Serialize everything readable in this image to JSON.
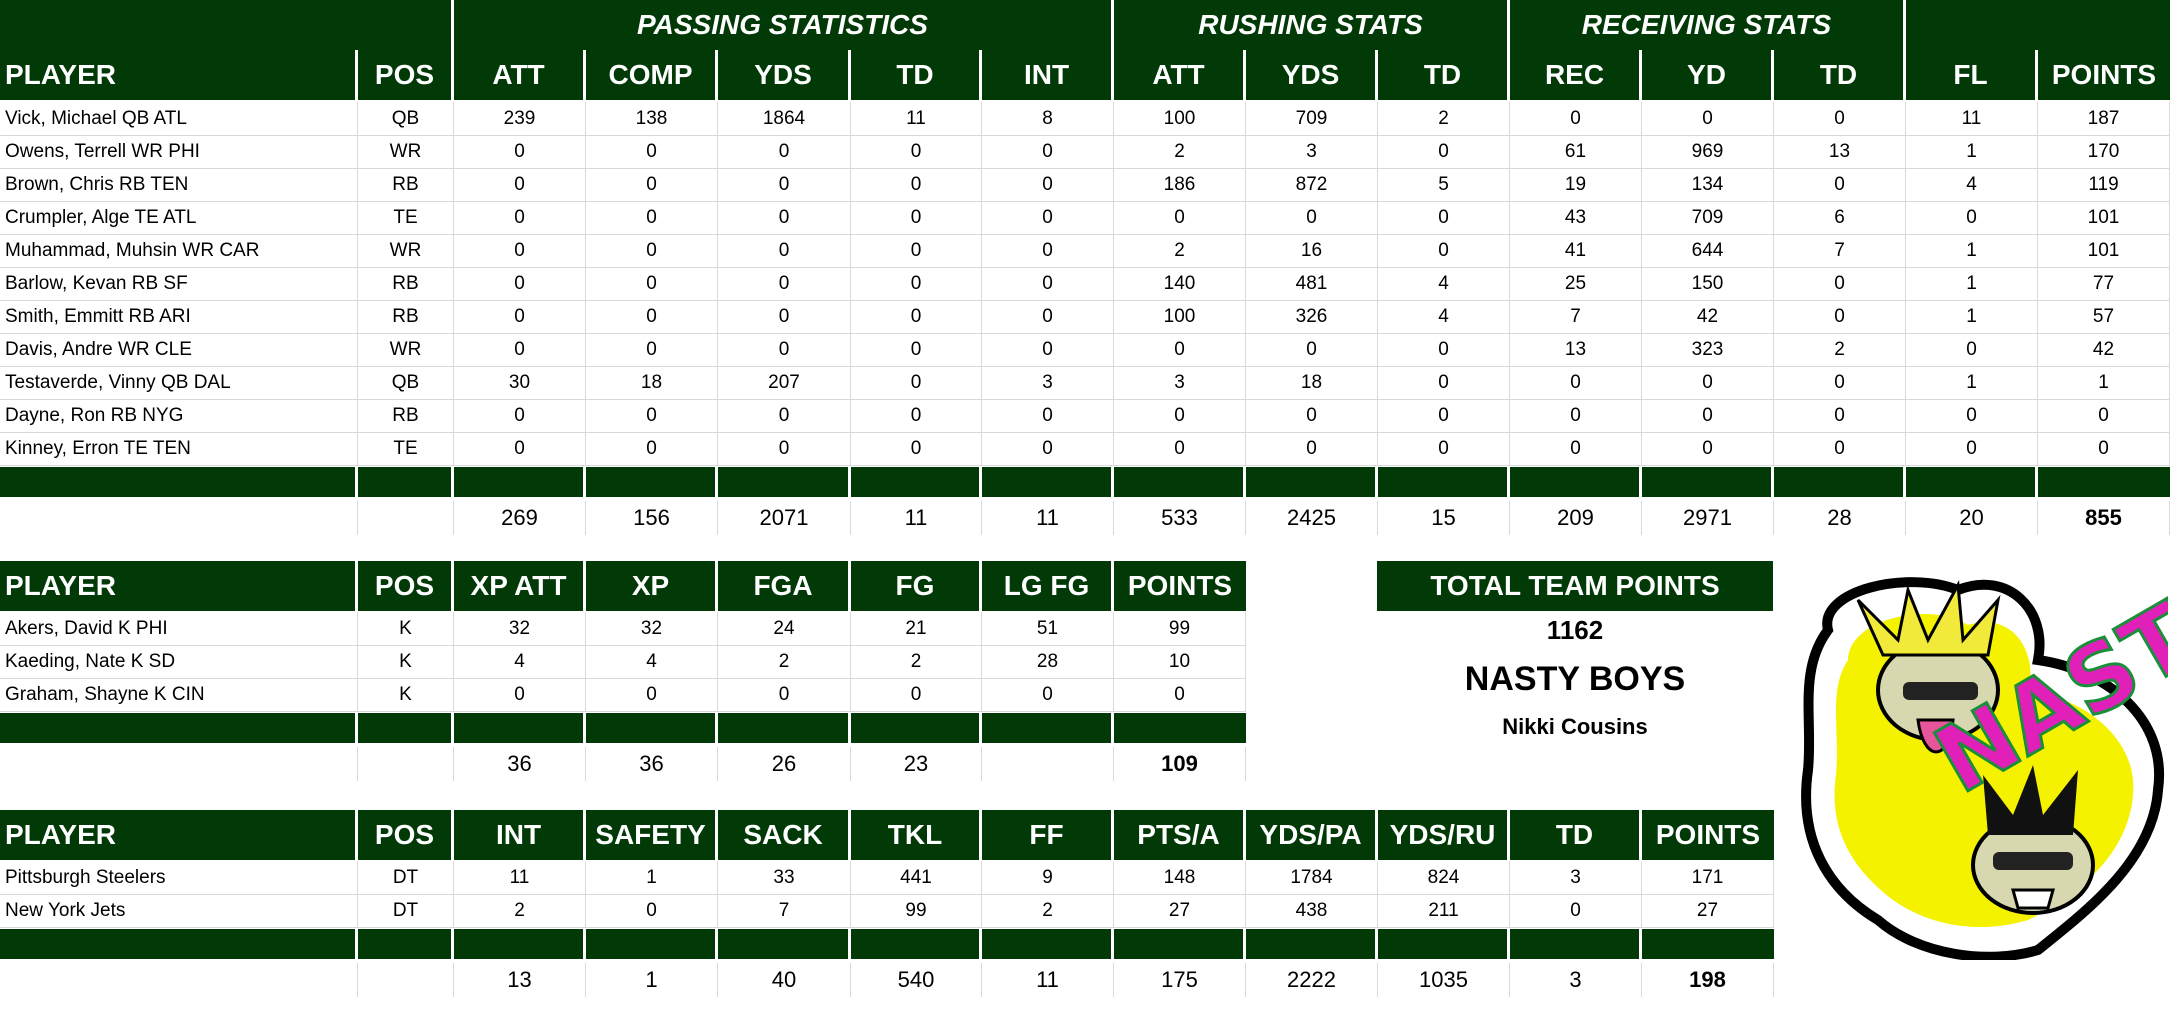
{
  "offense": {
    "group_headers": [
      "PASSING STATISTICS",
      "RUSHING STATS",
      "RECEIVING STATS"
    ],
    "columns": [
      "PLAYER",
      "POS",
      "ATT",
      "COMP",
      "YDS",
      "TD",
      "INT",
      "ATT",
      "YDS",
      "TD",
      "REC",
      "YD",
      "TD",
      "FL",
      "POINTS"
    ],
    "rows": [
      [
        "Vick, Michael QB ATL",
        "QB",
        "239",
        "138",
        "1864",
        "11",
        "8",
        "100",
        "709",
        "2",
        "0",
        "0",
        "0",
        "11",
        "187"
      ],
      [
        "Owens, Terrell WR PHI",
        "WR",
        "0",
        "0",
        "0",
        "0",
        "0",
        "2",
        "3",
        "0",
        "61",
        "969",
        "13",
        "1",
        "170"
      ],
      [
        "Brown, Chris RB TEN",
        "RB",
        "0",
        "0",
        "0",
        "0",
        "0",
        "186",
        "872",
        "5",
        "19",
        "134",
        "0",
        "4",
        "119"
      ],
      [
        "Crumpler, Alge TE ATL",
        "TE",
        "0",
        "0",
        "0",
        "0",
        "0",
        "0",
        "0",
        "0",
        "43",
        "709",
        "6",
        "0",
        "101"
      ],
      [
        "Muhammad, Muhsin WR CAR",
        "WR",
        "0",
        "0",
        "0",
        "0",
        "0",
        "2",
        "16",
        "0",
        "41",
        "644",
        "7",
        "1",
        "101"
      ],
      [
        "Barlow, Kevan RB SF",
        "RB",
        "0",
        "0",
        "0",
        "0",
        "0",
        "140",
        "481",
        "4",
        "25",
        "150",
        "0",
        "1",
        "77"
      ],
      [
        "Smith, Emmitt RB ARI",
        "RB",
        "0",
        "0",
        "0",
        "0",
        "0",
        "100",
        "326",
        "4",
        "7",
        "42",
        "0",
        "1",
        "57"
      ],
      [
        "Davis, Andre WR CLE",
        "WR",
        "0",
        "0",
        "0",
        "0",
        "0",
        "0",
        "0",
        "0",
        "13",
        "323",
        "2",
        "0",
        "42"
      ],
      [
        "Testaverde, Vinny QB DAL",
        "QB",
        "30",
        "18",
        "207",
        "0",
        "3",
        "3",
        "18",
        "0",
        "0",
        "0",
        "0",
        "1",
        "1"
      ],
      [
        "Dayne, Ron RB NYG",
        "RB",
        "0",
        "0",
        "0",
        "0",
        "0",
        "0",
        "0",
        "0",
        "0",
        "0",
        "0",
        "0",
        "0"
      ],
      [
        "Kinney, Erron TE TEN",
        "TE",
        "0",
        "0",
        "0",
        "0",
        "0",
        "0",
        "0",
        "0",
        "0",
        "0",
        "0",
        "0",
        "0"
      ]
    ],
    "totals": [
      "",
      "",
      "269",
      "156",
      "2071",
      "11",
      "11",
      "533",
      "2425",
      "15",
      "209",
      "2971",
      "28",
      "20",
      "855"
    ]
  },
  "kickers": {
    "columns": [
      "PLAYER",
      "POS",
      "XP ATT",
      "XP",
      "FGA",
      "FG",
      "LG FG",
      "POINTS"
    ],
    "rows": [
      [
        "Akers, David K PHI",
        "K",
        "32",
        "32",
        "24",
        "21",
        "51",
        "99"
      ],
      [
        "Kaeding, Nate K SD",
        "K",
        "4",
        "4",
        "2",
        "2",
        "28",
        "10"
      ],
      [
        "Graham, Shayne K CIN",
        "K",
        "0",
        "0",
        "0",
        "0",
        "0",
        "0"
      ]
    ],
    "totals": [
      "",
      "",
      "36",
      "36",
      "26",
      "23",
      "",
      "109"
    ]
  },
  "defense": {
    "columns": [
      "PLAYER",
      "POS",
      "INT",
      "SAFETY",
      "SACK",
      "TKL",
      "FF",
      "PTS/A",
      "YDS/PA",
      "YDS/RU",
      "TD",
      "POINTS"
    ],
    "rows": [
      [
        "Pittsburgh Steelers",
        "DT",
        "11",
        "1",
        "33",
        "441",
        "9",
        "148",
        "1784",
        "824",
        "3",
        "171"
      ],
      [
        "New York Jets",
        "DT",
        "2",
        "0",
        "7",
        "99",
        "2",
        "27",
        "438",
        "211",
        "0",
        "27"
      ]
    ],
    "totals": [
      "",
      "",
      "13",
      "1",
      "40",
      "540",
      "11",
      "175",
      "2222",
      "1035",
      "3",
      "198"
    ]
  },
  "team": {
    "total_label": "TOTAL TEAM POINTS",
    "total_points": "1162",
    "team_name": "NASTY BOYS",
    "owner": "Nikki Cousins",
    "logo_text": "NASTY"
  },
  "colors": {
    "header_green": "#013a07",
    "logo_yellow": "#f5f200",
    "logo_magenta": "#e020b8"
  }
}
